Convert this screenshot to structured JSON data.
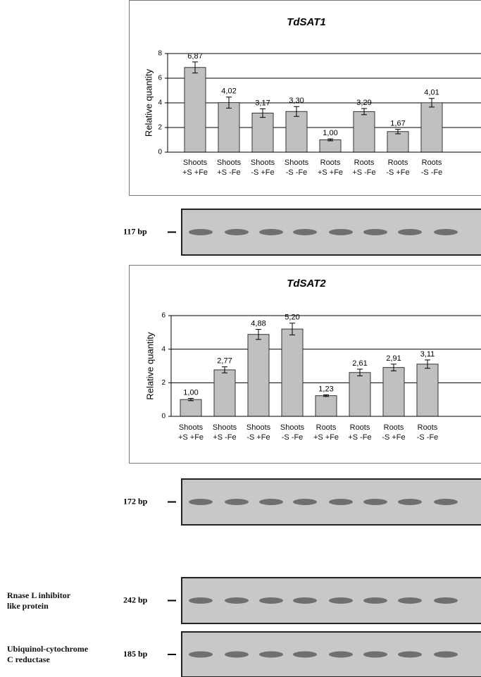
{
  "chart_data": [
    {
      "type": "bar",
      "title": "TdSAT1",
      "ylabel": "Relative quantity",
      "categories": [
        "Shoots\n+S +Fe",
        "Shoots\n+S -Fe",
        "Shoots\n-S +Fe",
        "Shoots\n-S -Fe",
        "Roots\n+S +Fe",
        "Roots\n+S -Fe",
        "Roots\n-S +Fe",
        "Roots\n-S -Fe"
      ],
      "values": [
        6.87,
        4.02,
        3.17,
        3.3,
        1.0,
        3.29,
        1.67,
        4.01
      ],
      "value_labels": [
        "6,87",
        "4,02",
        "3,17",
        "3,30",
        "1,00",
        "3,29",
        "1,67",
        "4,01"
      ],
      "errors": [
        0.45,
        0.45,
        0.35,
        0.4,
        0.08,
        0.25,
        0.18,
        0.35
      ],
      "color": "#c0c0c0",
      "ylim": [
        0,
        8
      ],
      "yticks": [
        0,
        2,
        4,
        6,
        8
      ],
      "grid": true
    },
    {
      "type": "bar",
      "title": "TdSAT2",
      "ylabel": "Relative quantity",
      "categories": [
        "Shoots\n+S +Fe",
        "Shoots\n+S -Fe",
        "Shoots\n-S +Fe",
        "Shoots\n-S -Fe",
        "Roots\n+S +Fe",
        "Roots\n+S -Fe",
        "Roots\n-S +Fe",
        "Roots\n-S -Fe"
      ],
      "values": [
        1.0,
        2.77,
        4.88,
        5.2,
        1.23,
        2.61,
        2.91,
        3.11
      ],
      "value_labels": [
        "1,00",
        "2,77",
        "4,88",
        "5,20",
        "1,23",
        "2,61",
        "2,91",
        "3,11"
      ],
      "errors": [
        0.07,
        0.18,
        0.3,
        0.35,
        0.05,
        0.2,
        0.2,
        0.25
      ],
      "color": "#c0c0c0",
      "ylim": [
        0,
        6
      ],
      "yticks": [
        0,
        2,
        4,
        6
      ],
      "grid": true
    }
  ],
  "gels": [
    {
      "label": "117 bp"
    },
    {
      "label": "172 bp"
    },
    {
      "label": "242 bp",
      "caption": "Rnase L inhibitor\nlike protein"
    },
    {
      "label": "185 bp",
      "caption": "Ubiquinol-cytochrome\nC reductase"
    }
  ]
}
